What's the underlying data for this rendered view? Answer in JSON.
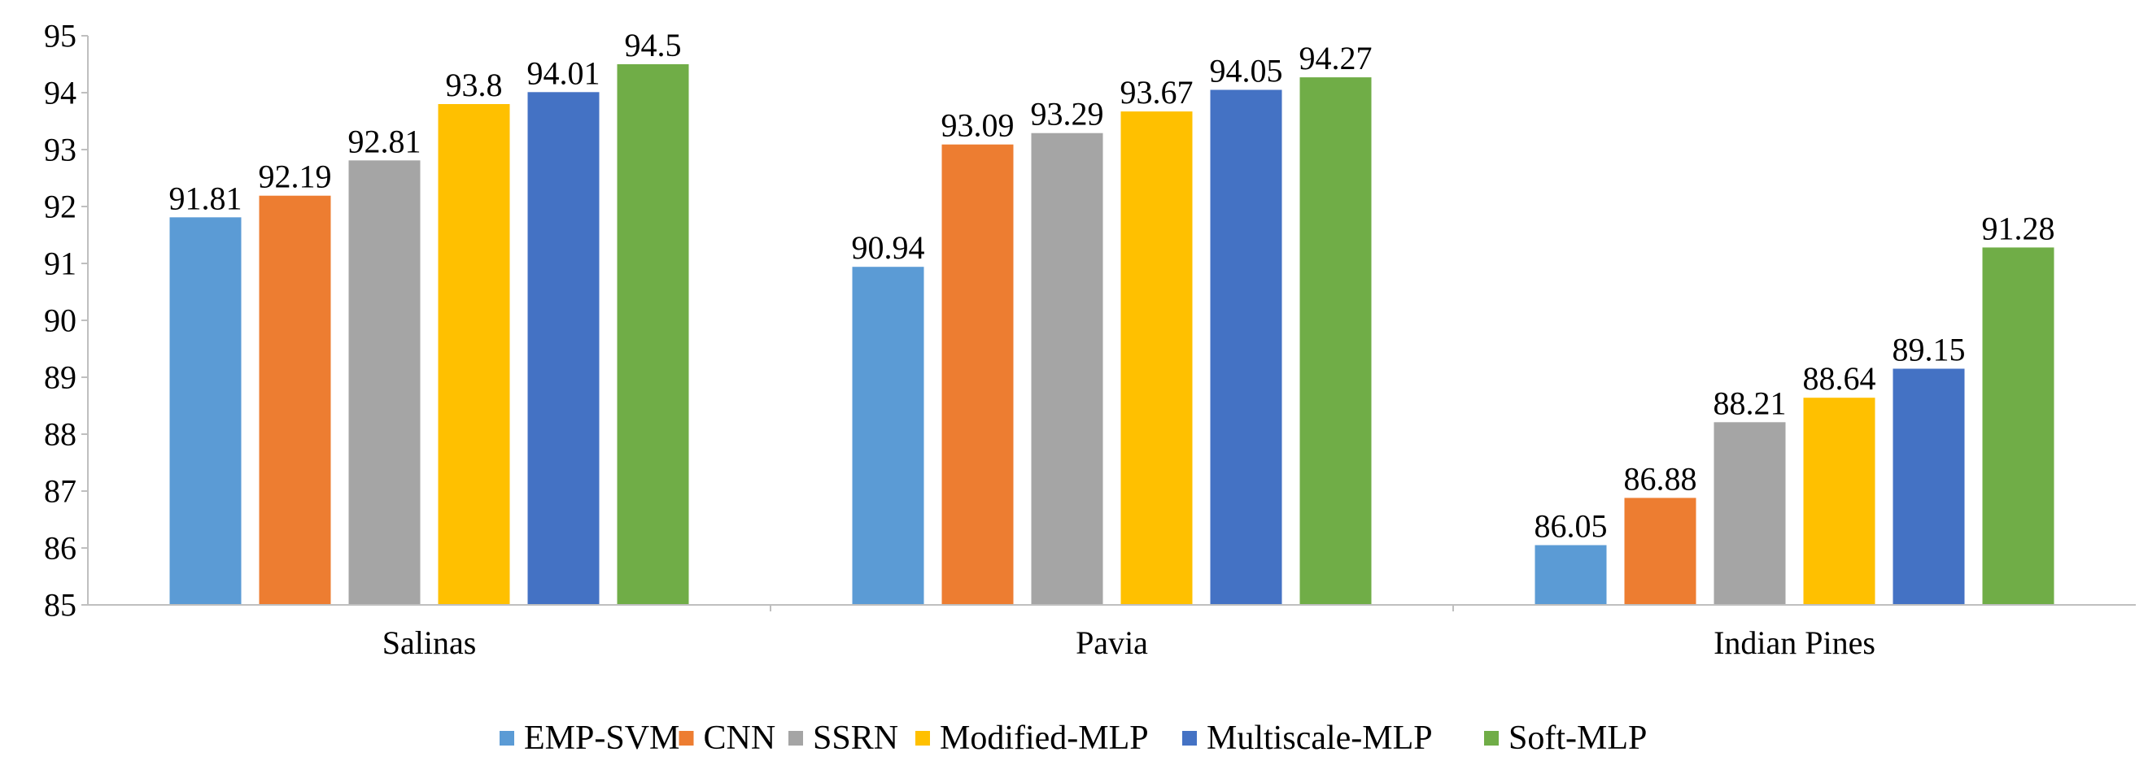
{
  "chart_data": {
    "type": "bar",
    "title": "",
    "xlabel": "",
    "ylabel": "",
    "ylim": [
      85,
      95
    ],
    "yticks": [
      85,
      86,
      87,
      88,
      89,
      90,
      91,
      92,
      93,
      94,
      95
    ],
    "grid": false,
    "legend_position": "bottom",
    "categories": [
      "Salinas",
      "Pavia",
      "Indian Pines"
    ],
    "series": [
      {
        "name": "EMP-SVM",
        "color": "#5b9bd5",
        "values": [
          91.81,
          90.94,
          86.05
        ]
      },
      {
        "name": "CNN",
        "color": "#ed7d31",
        "values": [
          92.19,
          93.09,
          86.88
        ]
      },
      {
        "name": "SSRN",
        "color": "#a5a5a5",
        "values": [
          92.81,
          93.29,
          88.21
        ]
      },
      {
        "name": "Modified-MLP",
        "color": "#ffc000",
        "values": [
          93.8,
          93.67,
          88.64
        ]
      },
      {
        "name": "Multiscale-MLP",
        "color": "#4472c4",
        "values": [
          94.01,
          94.05,
          89.15
        ]
      },
      {
        "name": "Soft-MLP",
        "color": "#70ad47",
        "values": [
          94.5,
          94.27,
          91.28
        ]
      }
    ]
  }
}
